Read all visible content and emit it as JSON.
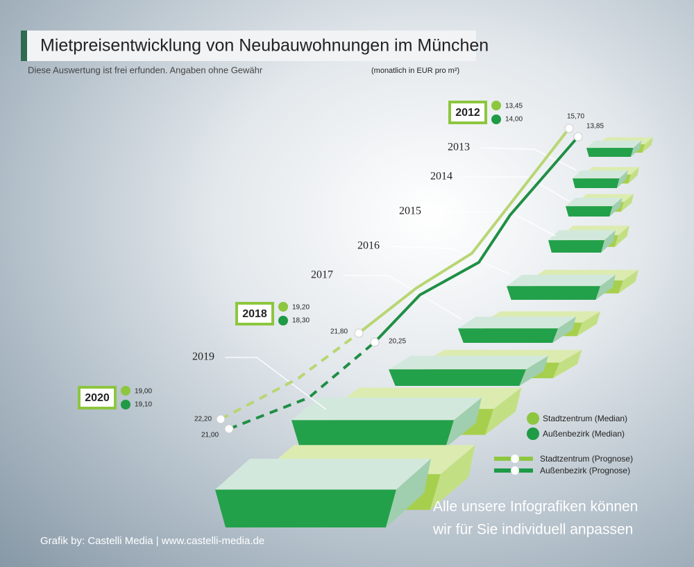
{
  "title": "Mietpreisentwicklung von Neubauwohnungen im München",
  "subtitle": "Diese Auswertung ist frei erfunden. Angaben ohne Gewähr",
  "unit_note": "(monatlich in EUR pro m²)",
  "years": [
    "2013",
    "2014",
    "2015",
    "2016",
    "2017",
    "2019"
  ],
  "highlights": [
    {
      "year": "2012",
      "stadtzentrum": "13,45",
      "aussenbezirk": "14,00"
    },
    {
      "year": "2018",
      "stadtzentrum": "19,20",
      "aussenbezirk": "18,30"
    },
    {
      "year": "2020",
      "stadtzentrum": "19,00",
      "aussenbezirk": "19,10"
    }
  ],
  "point_labels": {
    "stadtzentrum": [
      "15,70",
      "21,80",
      "22,20"
    ],
    "aussenbezirk": [
      "13,85",
      "20,25",
      "21,00"
    ]
  },
  "legend": [
    "Stadtzentrum (Median)",
    "Außenbezirk (Median)",
    "Stadtzentrum (Prognose)",
    "Außenbezirk (Prognose)"
  ],
  "promo": [
    "Alle unsere Infografiken können",
    "wir für Sie individuell anpassen"
  ],
  "footer": "Grafik by: Castelli Media | www.castelli-media.de"
}
